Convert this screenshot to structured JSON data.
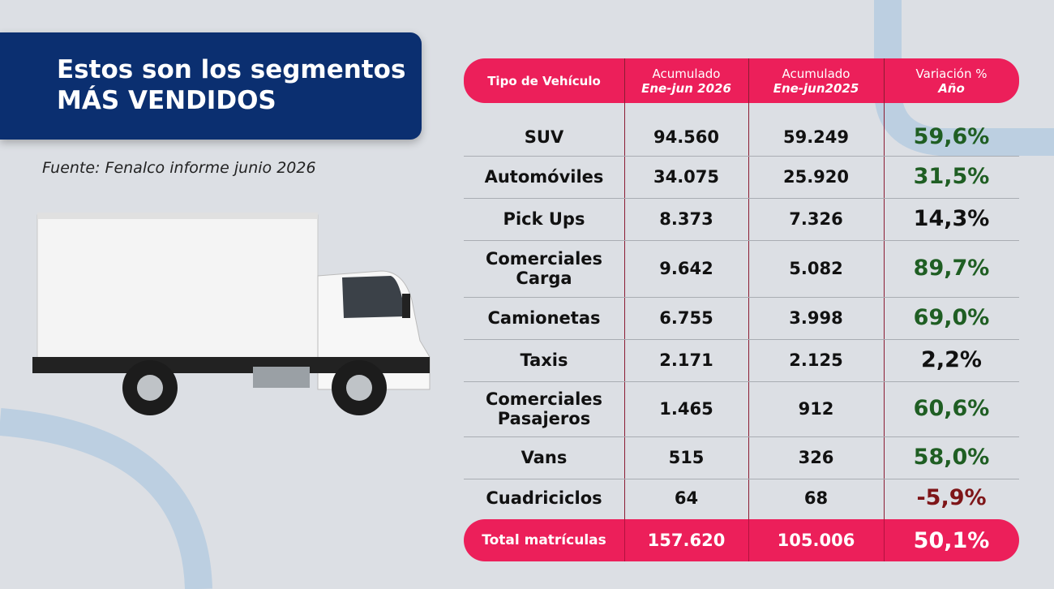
{
  "header": {
    "title": [
      "Estos son los segmentos",
      "MÁS VENDIDOS"
    ],
    "source": "Fuente: Fenalco informe junio 2026"
  },
  "table": {
    "columns": [
      {
        "line1": "Tipo de Vehículo"
      },
      {
        "line1": "Acumulado",
        "line2": "Ene-jun 2026"
      },
      {
        "line1": "Acumulado",
        "line2": "Ene-jun2025"
      },
      {
        "line1": "Variación %",
        "line2": "Año"
      }
    ],
    "rows": [
      [
        "SUV",
        "94.560",
        "59.249",
        "59,6%"
      ],
      [
        "Automóviles",
        "34.075",
        "25.920",
        "31,5%"
      ],
      [
        "Pick Ups",
        "8.373",
        "7.326",
        "14,3%"
      ],
      [
        "Comerciales Carga",
        "9.642",
        "5.082",
        "89,7%"
      ],
      [
        "Camionetas",
        "6.755",
        "3.998",
        "69,0%"
      ],
      [
        "Taxis",
        "2.171",
        "2.125",
        "2,2%"
      ],
      [
        "Comerciales Pasajeros",
        "1.465",
        "912",
        "60,6%"
      ],
      [
        "Vans",
        "515",
        "326",
        "58,0%"
      ],
      [
        "Cuadriciclos",
        "64",
        "68",
        "-5,9%"
      ]
    ],
    "total": [
      "Total matrículas",
      "157.620",
      "105.006",
      "50,1%"
    ]
  }
}
